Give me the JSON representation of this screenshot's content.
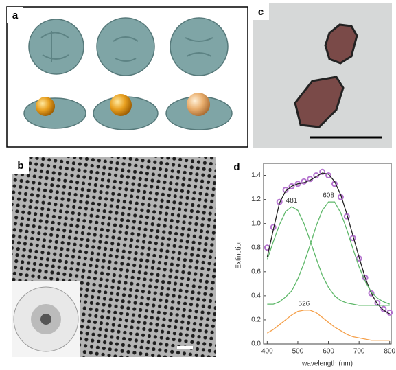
{
  "panel_labels": [
    "a",
    "b",
    "c",
    "d"
  ],
  "chart_data": {
    "type": "line",
    "xlabel": "wavelength (nm)",
    "ylabel": "Extinction",
    "x": [
      400,
      420,
      440,
      460,
      480,
      500,
      520,
      540,
      560,
      580,
      600,
      620,
      640,
      660,
      680,
      700,
      720,
      740,
      760,
      780,
      800
    ],
    "xlim": [
      388,
      805
    ],
    "xticks": [
      400,
      500,
      600,
      700,
      800
    ],
    "ylim": [
      0,
      1.5
    ],
    "yticks": [
      {
        "value": 0,
        "label": "0.0"
      },
      0.2,
      0.4,
      0.6,
      0.8,
      {
        "value": 1,
        "label": "1.0"
      },
      1.2,
      1.4
    ],
    "series": [
      {
        "color": "#b574cf",
        "style": "markers",
        "values": [
          0.8,
          0.97,
          1.18,
          1.28,
          1.31,
          1.33,
          1.35,
          1.37,
          1.4,
          1.43,
          1.4,
          1.33,
          1.22,
          1.06,
          0.88,
          0.71,
          0.55,
          0.42,
          0.34,
          0.29,
          0.26
        ]
      },
      {
        "color": "#222222",
        "style": "line",
        "values": [
          0.72,
          0.95,
          1.17,
          1.27,
          1.31,
          1.33,
          1.34,
          1.36,
          1.39,
          1.42,
          1.41,
          1.35,
          1.24,
          1.08,
          0.9,
          0.72,
          0.55,
          0.42,
          0.33,
          0.28,
          0.25
        ]
      },
      {
        "color": "#5fb86a",
        "style": "line",
        "label": "481",
        "values": [
          0.7,
          0.85,
          0.99,
          1.1,
          1.14,
          1.11,
          1.0,
          0.86,
          0.71,
          0.57,
          0.47,
          0.4,
          0.36,
          0.34,
          0.33,
          0.32,
          0.32,
          0.32,
          0.32,
          0.32,
          0.32
        ]
      },
      {
        "color": "#5fb86a",
        "style": "line",
        "label": "608",
        "values": [
          0.33,
          0.33,
          0.35,
          0.39,
          0.44,
          0.54,
          0.67,
          0.82,
          0.98,
          1.11,
          1.18,
          1.18,
          1.09,
          0.95,
          0.79,
          0.64,
          0.52,
          0.43,
          0.38,
          0.35,
          0.33
        ]
      },
      {
        "color": "#f5a04a",
        "style": "line",
        "label": "526",
        "values": [
          0.09,
          0.12,
          0.16,
          0.2,
          0.24,
          0.27,
          0.28,
          0.28,
          0.26,
          0.22,
          0.18,
          0.14,
          0.11,
          0.08,
          0.06,
          0.05,
          0.04,
          0.03,
          0.03,
          0.03,
          0.03
        ]
      }
    ]
  }
}
